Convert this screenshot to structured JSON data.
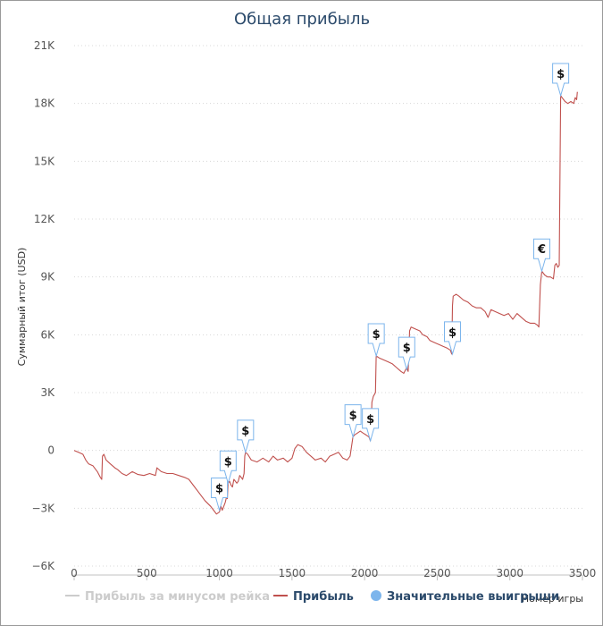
{
  "chart_data": {
    "type": "line",
    "title": "Общая прибыль",
    "xlabel": "Номер игры",
    "ylabel": "Суммарный итог (USD)",
    "xlim": [
      0,
      3500
    ],
    "ylim": [
      -6000,
      21000
    ],
    "x_ticks": [
      0,
      500,
      1000,
      1500,
      2000,
      2500,
      3000,
      3500
    ],
    "x_tick_labels": [
      "0",
      "500",
      "1000",
      "1500",
      "2000",
      "2500",
      "3000",
      "3500"
    ],
    "y_ticks": [
      -6000,
      -3000,
      0,
      3000,
      6000,
      9000,
      12000,
      15000,
      18000,
      21000
    ],
    "y_tick_labels": [
      "−6K",
      "−3K",
      "0",
      "3K",
      "6K",
      "9K",
      "12K",
      "15K",
      "18K",
      "21K"
    ],
    "grid": "horizontal-dotted",
    "legend": {
      "position": "bottom",
      "items": [
        {
          "label": "Прибыль за минусом рейка",
          "color": "#cccccc",
          "kind": "line"
        },
        {
          "label": "Прибыль",
          "color": "#c0504d",
          "kind": "line"
        },
        {
          "label": "Значительные выигрыши",
          "color": "#7cb5ec",
          "kind": "dot"
        }
      ]
    },
    "series": [
      {
        "name": "Прибыль",
        "color": "#c0504d",
        "points": [
          [
            0,
            0
          ],
          [
            30,
            -100
          ],
          [
            60,
            -200
          ],
          [
            80,
            -500
          ],
          [
            100,
            -700
          ],
          [
            130,
            -800
          ],
          [
            160,
            -1100
          ],
          [
            180,
            -1400
          ],
          [
            190,
            -1500
          ],
          [
            195,
            -300
          ],
          [
            205,
            -200
          ],
          [
            220,
            -500
          ],
          [
            250,
            -700
          ],
          [
            280,
            -900
          ],
          [
            300,
            -1000
          ],
          [
            330,
            -1200
          ],
          [
            360,
            -1300
          ],
          [
            400,
            -1100
          ],
          [
            440,
            -1250
          ],
          [
            480,
            -1300
          ],
          [
            520,
            -1200
          ],
          [
            560,
            -1300
          ],
          [
            570,
            -900
          ],
          [
            600,
            -1100
          ],
          [
            640,
            -1200
          ],
          [
            680,
            -1200
          ],
          [
            720,
            -1300
          ],
          [
            760,
            -1400
          ],
          [
            790,
            -1500
          ],
          [
            820,
            -1800
          ],
          [
            860,
            -2200
          ],
          [
            900,
            -2600
          ],
          [
            940,
            -2900
          ],
          [
            960,
            -3100
          ],
          [
            980,
            -3300
          ],
          [
            1000,
            -3200
          ],
          [
            1010,
            -2900
          ],
          [
            1020,
            -3100
          ],
          [
            1040,
            -2700
          ],
          [
            1050,
            -2400
          ],
          [
            1055,
            -2500
          ],
          [
            1060,
            -1700
          ],
          [
            1070,
            -1600
          ],
          [
            1080,
            -1800
          ],
          [
            1090,
            -1900
          ],
          [
            1100,
            -1500
          ],
          [
            1110,
            -1600
          ],
          [
            1120,
            -1700
          ],
          [
            1130,
            -1600
          ],
          [
            1140,
            -1300
          ],
          [
            1150,
            -1400
          ],
          [
            1160,
            -1500
          ],
          [
            1170,
            -1200
          ],
          [
            1175,
            -300
          ],
          [
            1180,
            -100
          ],
          [
            1195,
            -200
          ],
          [
            1220,
            -500
          ],
          [
            1260,
            -600
          ],
          [
            1300,
            -400
          ],
          [
            1340,
            -600
          ],
          [
            1370,
            -300
          ],
          [
            1400,
            -500
          ],
          [
            1440,
            -400
          ],
          [
            1470,
            -600
          ],
          [
            1500,
            -400
          ],
          [
            1520,
            100
          ],
          [
            1540,
            300
          ],
          [
            1570,
            200
          ],
          [
            1600,
            -100
          ],
          [
            1630,
            -300
          ],
          [
            1660,
            -500
          ],
          [
            1700,
            -400
          ],
          [
            1730,
            -600
          ],
          [
            1760,
            -300
          ],
          [
            1790,
            -200
          ],
          [
            1820,
            -100
          ],
          [
            1850,
            -400
          ],
          [
            1880,
            -500
          ],
          [
            1900,
            -300
          ],
          [
            1920,
            700
          ],
          [
            1930,
            800
          ],
          [
            1950,
            900
          ],
          [
            1970,
            1000
          ],
          [
            1990,
            900
          ],
          [
            2010,
            800
          ],
          [
            2030,
            700
          ],
          [
            2040,
            500
          ],
          [
            2045,
            1200
          ],
          [
            2050,
            2500
          ],
          [
            2060,
            2800
          ],
          [
            2075,
            3000
          ],
          [
            2080,
            4900
          ],
          [
            2100,
            4800
          ],
          [
            2130,
            4700
          ],
          [
            2160,
            4600
          ],
          [
            2190,
            4500
          ],
          [
            2220,
            4300
          ],
          [
            2250,
            4100
          ],
          [
            2270,
            4000
          ],
          [
            2290,
            4300
          ],
          [
            2300,
            4100
          ],
          [
            2310,
            6200
          ],
          [
            2320,
            6400
          ],
          [
            2350,
            6300
          ],
          [
            2380,
            6200
          ],
          [
            2400,
            6000
          ],
          [
            2430,
            5900
          ],
          [
            2450,
            5700
          ],
          [
            2480,
            5600
          ],
          [
            2510,
            5500
          ],
          [
            2540,
            5400
          ],
          [
            2570,
            5300
          ],
          [
            2590,
            5200
          ],
          [
            2600,
            5000
          ],
          [
            2605,
            7500
          ],
          [
            2610,
            8000
          ],
          [
            2630,
            8100
          ],
          [
            2650,
            8000
          ],
          [
            2680,
            7800
          ],
          [
            2710,
            7700
          ],
          [
            2740,
            7500
          ],
          [
            2770,
            7400
          ],
          [
            2800,
            7400
          ],
          [
            2830,
            7200
          ],
          [
            2850,
            6900
          ],
          [
            2870,
            7300
          ],
          [
            2900,
            7200
          ],
          [
            2930,
            7100
          ],
          [
            2960,
            7000
          ],
          [
            2990,
            7100
          ],
          [
            3020,
            6800
          ],
          [
            3050,
            7100
          ],
          [
            3080,
            6900
          ],
          [
            3110,
            6700
          ],
          [
            3140,
            6600
          ],
          [
            3170,
            6600
          ],
          [
            3190,
            6500
          ],
          [
            3200,
            6400
          ],
          [
            3210,
            8600
          ],
          [
            3220,
            9300
          ],
          [
            3240,
            9100
          ],
          [
            3260,
            9000
          ],
          [
            3280,
            9000
          ],
          [
            3300,
            8900
          ],
          [
            3310,
            9600
          ],
          [
            3320,
            9700
          ],
          [
            3330,
            9500
          ],
          [
            3340,
            9600
          ],
          [
            3350,
            18400
          ],
          [
            3360,
            18300
          ],
          [
            3380,
            18100
          ],
          [
            3400,
            18000
          ],
          [
            3420,
            18100
          ],
          [
            3440,
            18000
          ],
          [
            3450,
            18300
          ],
          [
            3460,
            18200
          ],
          [
            3465,
            18600
          ]
        ]
      }
    ],
    "big_wins": [
      {
        "x": 1000,
        "y": -3100,
        "label": "$"
      },
      {
        "x": 1060,
        "y": -1700,
        "label": "$"
      },
      {
        "x": 1180,
        "y": -100,
        "label": "$"
      },
      {
        "x": 1920,
        "y": 700,
        "label": "$"
      },
      {
        "x": 2040,
        "y": 500,
        "label": "$"
      },
      {
        "x": 2080,
        "y": 4900,
        "label": "$"
      },
      {
        "x": 2290,
        "y": 4200,
        "label": "$"
      },
      {
        "x": 2605,
        "y": 5000,
        "label": "$"
      },
      {
        "x": 3220,
        "y": 9300,
        "label": "€"
      },
      {
        "x": 3350,
        "y": 18400,
        "label": "$"
      }
    ]
  }
}
